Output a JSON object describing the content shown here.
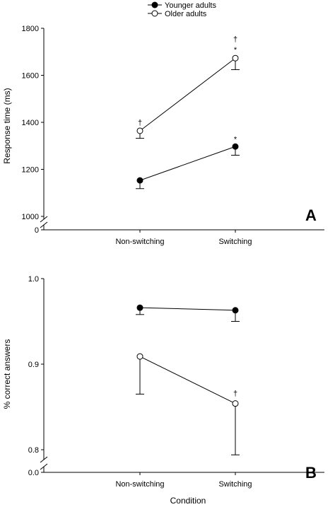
{
  "legend": [
    {
      "label": "Younger adults",
      "marker": "filled"
    },
    {
      "label": "Older adults",
      "marker": "open"
    }
  ],
  "xlabel": "Condition",
  "colors": {
    "line": "#000000",
    "open_fill": "#ffffff",
    "filled_fill": "#000000"
  },
  "chart_data": [
    {
      "type": "line",
      "panel_label": "A",
      "ylabel": "Response time (ms)",
      "categories": [
        "Non-switching",
        "Switching"
      ],
      "ylim": [
        1000,
        1800
      ],
      "yticks": [
        1000,
        1200,
        1400,
        1600,
        1800
      ],
      "axis_break": {
        "zero_label": "0"
      },
      "series": [
        {
          "name": "Younger adults",
          "marker": "filled",
          "values": [
            1153,
            1297
          ],
          "error_lower": [
            1118,
            1260
          ]
        },
        {
          "name": "Older adults",
          "marker": "open",
          "values": [
            1364,
            1673
          ],
          "error_lower": [
            1332,
            1624
          ]
        }
      ],
      "annotations": [
        {
          "category": "Non-switching",
          "y": 1400,
          "text": "†"
        },
        {
          "category": "Switching",
          "y": 1330,
          "text": "*"
        },
        {
          "category": "Switching",
          "y": 1710,
          "text": "*"
        },
        {
          "category": "Switching",
          "y": 1755,
          "text": "†"
        }
      ]
    },
    {
      "type": "line",
      "panel_label": "B",
      "ylabel": "% correct answers",
      "categories": [
        "Non-switching",
        "Switching"
      ],
      "ylim": [
        0.8,
        1.0
      ],
      "yticks": [
        0.8,
        0.9,
        1.0
      ],
      "ytick_labels": [
        "0.8",
        "0.9",
        "1.0"
      ],
      "axis_break": {
        "zero_label": "0.0"
      },
      "series": [
        {
          "name": "Younger adults",
          "marker": "filled",
          "values": [
            0.966,
            0.963
          ],
          "error_lower": [
            0.958,
            0.95
          ]
        },
        {
          "name": "Older adults",
          "marker": "open",
          "values": [
            0.909,
            0.854
          ],
          "error_lower": [
            0.865,
            0.794
          ]
        }
      ],
      "annotations": [
        {
          "category": "Switching",
          "y": 0.866,
          "text": "†"
        }
      ]
    }
  ]
}
